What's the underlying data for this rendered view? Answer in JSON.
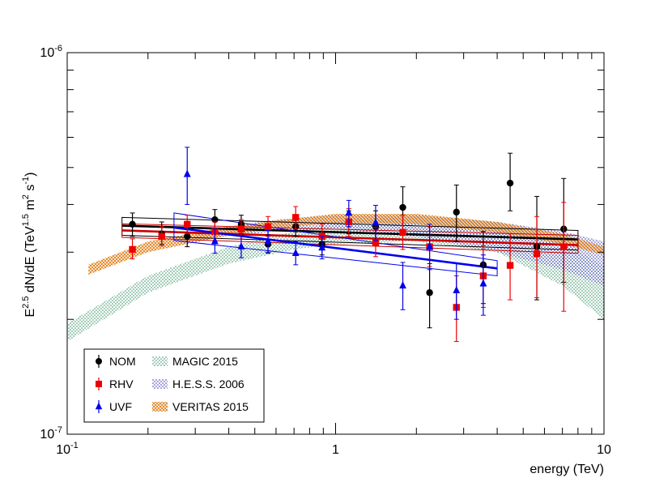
{
  "chart_data": {
    "type": "scatter",
    "title": "",
    "xlabel": "energy (TeV)",
    "ylabel": {
      "main": "E",
      "main_sup": "2.5",
      "mid": " dN/dE (TeV",
      "mid_sup": "1.5",
      "tail": " m",
      "tail_sup": "2",
      "end": " s",
      "end_sup": "-1",
      "close": ")"
    },
    "xscale": "log",
    "yscale": "log",
    "xlim": [
      0.1,
      10
    ],
    "ylim": [
      1e-07,
      1e-06
    ],
    "x_ticks": [
      {
        "value": 0.1,
        "base": "10",
        "exp": "-1"
      },
      {
        "value": 1,
        "label": "1"
      },
      {
        "value": 10,
        "label": "10"
      }
    ],
    "y_ticks": [
      {
        "value": 1e-07,
        "base": "10",
        "exp": "-7"
      },
      {
        "value": 1e-06,
        "base": "10",
        "exp": "-6"
      }
    ],
    "series": [
      {
        "name": "NOM",
        "color": "#000000",
        "marker": "circle",
        "points": [
          {
            "x": 0.175,
            "y": 3.55e-07,
            "ylo": 3.3e-07,
            "yhi": 3.8e-07
          },
          {
            "x": 0.225,
            "y": 3.35e-07,
            "ylo": 3.15e-07,
            "yhi": 3.6e-07
          },
          {
            "x": 0.28,
            "y": 3.3e-07,
            "ylo": 3.1e-07,
            "yhi": 3.5e-07
          },
          {
            "x": 0.355,
            "y": 3.65e-07,
            "ylo": 3.45e-07,
            "yhi": 3.88e-07
          },
          {
            "x": 0.445,
            "y": 3.55e-07,
            "ylo": 3.35e-07,
            "yhi": 3.75e-07
          },
          {
            "x": 0.56,
            "y": 3.15e-07,
            "ylo": 2.98e-07,
            "yhi": 3.33e-07
          },
          {
            "x": 0.71,
            "y": 3.5e-07,
            "ylo": 3.3e-07,
            "yhi": 3.72e-07
          },
          {
            "x": 0.89,
            "y": 3.15e-07,
            "ylo": 2.95e-07,
            "yhi": 3.35e-07
          },
          {
            "x": 1.12,
            "y": 3.6e-07,
            "ylo": 3.35e-07,
            "yhi": 3.85e-07
          },
          {
            "x": 1.41,
            "y": 3.5e-07,
            "ylo": 3.2e-07,
            "yhi": 3.85e-07
          },
          {
            "x": 1.78,
            "y": 3.93e-07,
            "ylo": 3.43e-07,
            "yhi": 4.45e-07
          },
          {
            "x": 2.24,
            "y": 2.35e-07,
            "ylo": 1.9e-07,
            "yhi": 2.8e-07
          },
          {
            "x": 2.82,
            "y": 3.82e-07,
            "ylo": 3.2e-07,
            "yhi": 4.5e-07
          },
          {
            "x": 3.55,
            "y": 2.78e-07,
            "ylo": 2.2e-07,
            "yhi": 3.4e-07
          },
          {
            "x": 4.47,
            "y": 4.55e-07,
            "ylo": 3.85e-07,
            "yhi": 5.45e-07
          },
          {
            "x": 5.62,
            "y": 3.1e-07,
            "ylo": 2.25e-07,
            "yhi": 4.2e-07
          },
          {
            "x": 7.08,
            "y": 3.45e-07,
            "ylo": 2.5e-07,
            "yhi": 4.68e-07
          }
        ]
      },
      {
        "name": "RHV",
        "color": "#ee0000",
        "marker": "square",
        "points": [
          {
            "x": 0.175,
            "y": 3.05e-07,
            "ylo": 2.88e-07,
            "yhi": 3.25e-07
          },
          {
            "x": 0.225,
            "y": 3.3e-07,
            "ylo": 3.12e-07,
            "yhi": 3.5e-07
          },
          {
            "x": 0.28,
            "y": 3.55e-07,
            "ylo": 3.35e-07,
            "yhi": 3.75e-07
          },
          {
            "x": 0.355,
            "y": 3.4e-07,
            "ylo": 3.2e-07,
            "yhi": 3.6e-07
          },
          {
            "x": 0.445,
            "y": 3.45e-07,
            "ylo": 3.25e-07,
            "yhi": 3.65e-07
          },
          {
            "x": 0.56,
            "y": 3.5e-07,
            "ylo": 3.3e-07,
            "yhi": 3.72e-07
          },
          {
            "x": 0.71,
            "y": 3.7e-07,
            "ylo": 3.45e-07,
            "yhi": 3.95e-07
          },
          {
            "x": 0.89,
            "y": 3.3e-07,
            "ylo": 3.08e-07,
            "yhi": 3.55e-07
          },
          {
            "x": 1.12,
            "y": 3.6e-07,
            "ylo": 3.3e-07,
            "yhi": 3.9e-07
          },
          {
            "x": 1.41,
            "y": 3.18e-07,
            "ylo": 2.92e-07,
            "yhi": 3.48e-07
          },
          {
            "x": 1.78,
            "y": 3.38e-07,
            "ylo": 3.05e-07,
            "yhi": 3.75e-07
          },
          {
            "x": 2.24,
            "y": 3.1e-07,
            "ylo": 2.75e-07,
            "yhi": 3.5e-07
          },
          {
            "x": 2.82,
            "y": 2.15e-07,
            "ylo": 1.75e-07,
            "yhi": 2.6e-07
          },
          {
            "x": 3.55,
            "y": 2.6e-07,
            "ylo": 2.15e-07,
            "yhi": 3.12e-07
          },
          {
            "x": 4.47,
            "y": 2.77e-07,
            "ylo": 2.25e-07,
            "yhi": 3.35e-07
          },
          {
            "x": 5.62,
            "y": 2.97e-07,
            "ylo": 2.28e-07,
            "yhi": 3.72e-07
          },
          {
            "x": 7.08,
            "y": 3.1e-07,
            "ylo": 2.1e-07,
            "yhi": 4.05e-07
          }
        ]
      },
      {
        "name": "UVF",
        "color": "#0000ee",
        "marker": "triangle",
        "points": [
          {
            "x": 0.28,
            "y": 4.8e-07,
            "ylo": 4e-07,
            "yhi": 5.65e-07
          },
          {
            "x": 0.355,
            "y": 3.2e-07,
            "ylo": 2.98e-07,
            "yhi": 3.45e-07
          },
          {
            "x": 0.445,
            "y": 3.1e-07,
            "ylo": 2.9e-07,
            "yhi": 3.32e-07
          },
          {
            "x": 0.56,
            "y": 3.2e-07,
            "ylo": 3e-07,
            "yhi": 3.42e-07
          },
          {
            "x": 0.71,
            "y": 2.98e-07,
            "ylo": 2.78e-07,
            "yhi": 3.2e-07
          },
          {
            "x": 0.89,
            "y": 3.08e-07,
            "ylo": 2.88e-07,
            "yhi": 3.3e-07
          },
          {
            "x": 1.12,
            "y": 3.8e-07,
            "ylo": 3.5e-07,
            "yhi": 4.1e-07
          },
          {
            "x": 1.41,
            "y": 3.58e-07,
            "ylo": 3.22e-07,
            "yhi": 3.98e-07
          },
          {
            "x": 1.78,
            "y": 2.45e-07,
            "ylo": 2.12e-07,
            "yhi": 2.82e-07
          },
          {
            "x": 2.24,
            "y": 3.1e-07,
            "ylo": 2.7e-07,
            "yhi": 3.55e-07
          },
          {
            "x": 2.82,
            "y": 2.38e-07,
            "ylo": 2e-07,
            "yhi": 2.8e-07
          },
          {
            "x": 3.55,
            "y": 2.48e-07,
            "ylo": 2.05e-07,
            "yhi": 2.95e-07
          }
        ]
      }
    ],
    "fits": [
      {
        "name": "NOM",
        "color": "#000000",
        "x": [
          0.16,
          8.0
        ],
        "y": [
          3.52e-07,
          3.24e-07
        ],
        "band": [
          [
            3.7e-07,
            3.42e-07
          ],
          [
            3.32e-07,
            3.04e-07
          ]
        ]
      },
      {
        "name": "RHV",
        "color": "#cc0000",
        "x": [
          0.16,
          8.0
        ],
        "y": [
          3.42e-07,
          3.13e-07
        ],
        "band": [
          [
            3.56e-07,
            3.32e-07
          ],
          [
            3.28e-07,
            2.98e-07
          ]
        ]
      },
      {
        "name": "UVF",
        "color": "#0000ee",
        "x": [
          0.25,
          4.0
        ],
        "y": [
          3.48e-07,
          2.72e-07
        ],
        "band": [
          [
            3.8e-07,
            2.85e-07
          ],
          [
            3.22e-07,
            2.6e-07
          ]
        ]
      }
    ],
    "reference_bands": [
      {
        "name": "MAGIC 2015",
        "color": "#2a8a5a",
        "pattern": "dots",
        "x": [
          0.1,
          0.2,
          0.4,
          0.7,
          1.0,
          2.0,
          4.0,
          7.0,
          10.0
        ],
        "upper": [
          1.95e-07,
          2.6e-07,
          3.1e-07,
          3.4e-07,
          3.6e-07,
          3.72e-07,
          3.6e-07,
          3.2e-07,
          2.75e-07
        ],
        "lower": [
          1.75e-07,
          2.35e-07,
          2.8e-07,
          3.05e-07,
          3.15e-07,
          3.2e-07,
          3e-07,
          2.45e-07,
          2e-07
        ]
      },
      {
        "name": "H.E.S.S. 2006",
        "color": "#2a2aaa",
        "pattern": "dots",
        "x": [
          0.3,
          0.6,
          1.0,
          2.0,
          4.0,
          7.0,
          10.0
        ],
        "upper": [
          3.4e-07,
          3.65e-07,
          3.75e-07,
          3.75e-07,
          3.6e-07,
          3.4e-07,
          3.2e-07
        ],
        "lower": [
          3.25e-07,
          3.4e-07,
          3.45e-07,
          3.3e-07,
          3e-07,
          2.7e-07,
          2.45e-07
        ]
      },
      {
        "name": "VERITAS 2015",
        "color": "#e07a10",
        "pattern": "crosshatch",
        "x": [
          0.12,
          0.2,
          0.4,
          0.7,
          1.0,
          2.0,
          4.0,
          7.0,
          10.0
        ],
        "upper": [
          2.78e-07,
          3.2e-07,
          3.5e-07,
          3.68e-07,
          3.78e-07,
          3.78e-07,
          3.6e-07,
          3.35e-07,
          3.1e-07
        ],
        "lower": [
          2.62e-07,
          3e-07,
          3.32e-07,
          3.5e-07,
          3.58e-07,
          3.55e-07,
          3.38e-07,
          3.15e-07,
          2.95e-07
        ]
      }
    ],
    "legend": {
      "position": "bottom-left",
      "entries": [
        "NOM",
        "RHV",
        "UVF",
        "MAGIC 2015",
        "H.E.S.S. 2006",
        "VERITAS 2015"
      ]
    },
    "grid": false
  }
}
